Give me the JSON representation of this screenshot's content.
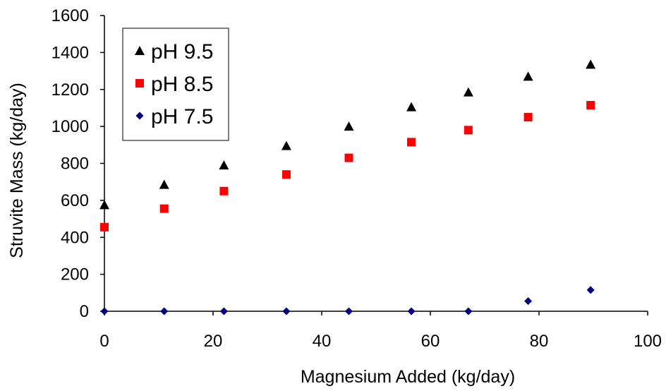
{
  "chart_data": {
    "type": "scatter",
    "title": "",
    "xlabel": "Magnesium Added (kg/day)",
    "ylabel": "Struvite Mass (kg/day)",
    "xlim": [
      0,
      100
    ],
    "ylim": [
      0,
      1600
    ],
    "x_ticks": [
      0,
      20,
      40,
      60,
      80,
      100
    ],
    "y_ticks": [
      0,
      200,
      400,
      600,
      800,
      1000,
      1200,
      1400,
      1600
    ],
    "x_tick_labels": [
      "0",
      "20",
      "40",
      "60",
      "80",
      "100"
    ],
    "y_tick_labels": [
      "0",
      "200",
      "400",
      "600",
      "800",
      "1000",
      "1200",
      "1400",
      "1600"
    ],
    "grid": false,
    "legend_position": "top-left",
    "series": [
      {
        "name": "pH 9.5",
        "marker": "triangle",
        "color": "#000000",
        "x": [
          0,
          11,
          22,
          33.5,
          45,
          56.5,
          67,
          78,
          89.5
        ],
        "y": [
          575,
          685,
          790,
          895,
          1000,
          1105,
          1185,
          1270,
          1335
        ]
      },
      {
        "name": "pH 8.5",
        "marker": "square",
        "color": "#ff0000",
        "x": [
          0,
          11,
          22,
          33.5,
          45,
          56.5,
          67,
          78,
          89.5
        ],
        "y": [
          455,
          555,
          650,
          740,
          830,
          915,
          980,
          1050,
          1115
        ]
      },
      {
        "name": "pH 7.5",
        "marker": "diamond",
        "color": "#000080",
        "x": [
          0,
          11,
          22,
          33.5,
          45,
          56.5,
          67,
          78,
          89.5
        ],
        "y": [
          0,
          0,
          0,
          0,
          0,
          0,
          0,
          55,
          115
        ]
      }
    ]
  }
}
